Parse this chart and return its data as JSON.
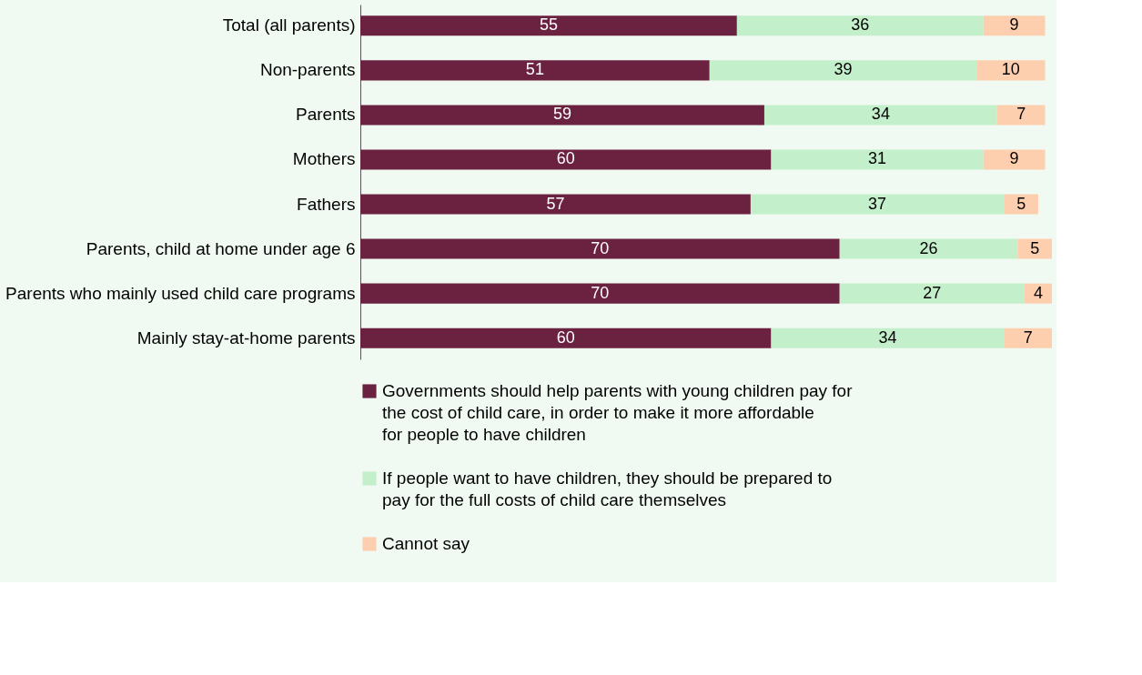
{
  "chart_data": {
    "type": "bar",
    "orientation": "horizontal",
    "stacked": true,
    "data_labels": true,
    "grid": false,
    "legend": "bottom",
    "tick_labels": "y",
    "categories": [
      "Total (all parents)",
      "Non-parents",
      "Parents",
      "Mothers",
      "Fathers",
      "Parents, child at home under age 6",
      "Parents who mainly used child care programs",
      "Mainly stay-at-home parents"
    ],
    "series": [
      {
        "name": "Governments should help parents with young children pay for the cost of child care, in order to make it more affordable for people to have children",
        "color": "#6b2240",
        "values": [
          55,
          51,
          59,
          60,
          57,
          70,
          70,
          60
        ]
      },
      {
        "name": "If people want to have children, they should be prepared to pay for the full costs of child care themselves",
        "color": "#c3efca",
        "values": [
          36,
          39,
          34,
          31,
          37,
          26,
          27,
          34
        ]
      },
      {
        "name": "Cannot say",
        "color": "#fdcfae",
        "values": [
          9,
          10,
          7,
          9,
          5,
          5,
          4,
          7
        ]
      }
    ]
  }
}
